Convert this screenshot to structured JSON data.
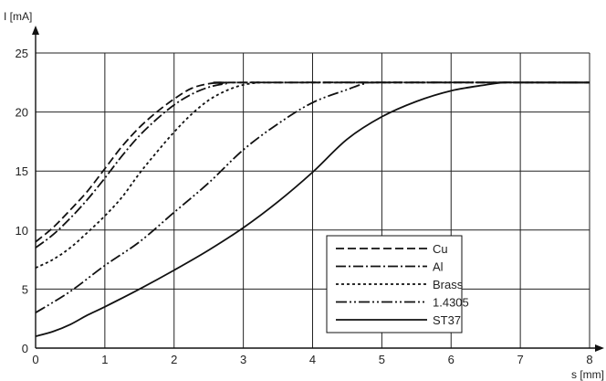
{
  "chart_data": {
    "type": "line",
    "title": "",
    "xlabel": "s [mm]",
    "ylabel": "I [mA]",
    "xlim": [
      0,
      8
    ],
    "ylim": [
      0,
      25
    ],
    "xticks": [
      "0",
      "1",
      "2",
      "3",
      "4",
      "5",
      "6",
      "7",
      "8"
    ],
    "yticks": [
      "0",
      "5",
      "10",
      "15",
      "20",
      "25"
    ],
    "grid": true,
    "legend_position": "bottom-right",
    "series": [
      {
        "name": "Cu",
        "style": "dashed",
        "x": [
          0,
          0.25,
          0.5,
          0.75,
          1.0,
          1.25,
          1.5,
          1.75,
          2.0,
          2.25,
          2.5,
          2.75,
          3.0,
          8.0
        ],
        "y": [
          9.0,
          10.2,
          11.7,
          13.3,
          15.2,
          17.1,
          18.7,
          20.0,
          21.1,
          22.0,
          22.4,
          22.5,
          22.5,
          22.5
        ]
      },
      {
        "name": "Al",
        "style": "dash-dot",
        "x": [
          0,
          0.25,
          0.5,
          0.75,
          1.0,
          1.25,
          1.5,
          1.75,
          2.0,
          2.25,
          2.5,
          2.75,
          3.0,
          8.0
        ],
        "y": [
          8.5,
          9.6,
          11.0,
          12.6,
          14.4,
          16.3,
          18.0,
          19.4,
          20.6,
          21.5,
          22.1,
          22.4,
          22.5,
          22.5
        ]
      },
      {
        "name": "Brass",
        "style": "dotted",
        "x": [
          0,
          0.25,
          0.5,
          0.75,
          1.0,
          1.25,
          1.5,
          1.75,
          2.0,
          2.25,
          2.5,
          2.75,
          3.0,
          3.25,
          3.5,
          8.0
        ],
        "y": [
          6.8,
          7.5,
          8.5,
          9.8,
          11.2,
          12.8,
          14.8,
          16.6,
          18.3,
          19.8,
          21.0,
          21.8,
          22.3,
          22.5,
          22.5,
          22.5
        ]
      },
      {
        "name": "1.4305",
        "style": "dash-dot-dot",
        "x": [
          0,
          0.5,
          1.0,
          1.5,
          2.0,
          2.5,
          3.0,
          3.5,
          4.0,
          4.5,
          4.75,
          5.0,
          8.0
        ],
        "y": [
          3.0,
          4.8,
          7.0,
          9.0,
          11.5,
          14.0,
          16.8,
          19.0,
          20.8,
          21.9,
          22.4,
          22.5,
          22.5
        ]
      },
      {
        "name": "ST37",
        "style": "solid",
        "x": [
          0,
          0.25,
          0.5,
          0.75,
          1.0,
          1.5,
          2.0,
          2.5,
          3.0,
          3.5,
          4.0,
          4.5,
          5.0,
          5.5,
          6.0,
          6.5,
          6.75,
          7.0,
          8.0
        ],
        "y": [
          1.0,
          1.4,
          2.0,
          2.8,
          3.5,
          5.0,
          6.6,
          8.3,
          10.2,
          12.4,
          14.9,
          17.7,
          19.6,
          20.9,
          21.8,
          22.3,
          22.5,
          22.5,
          22.5
        ]
      }
    ]
  }
}
